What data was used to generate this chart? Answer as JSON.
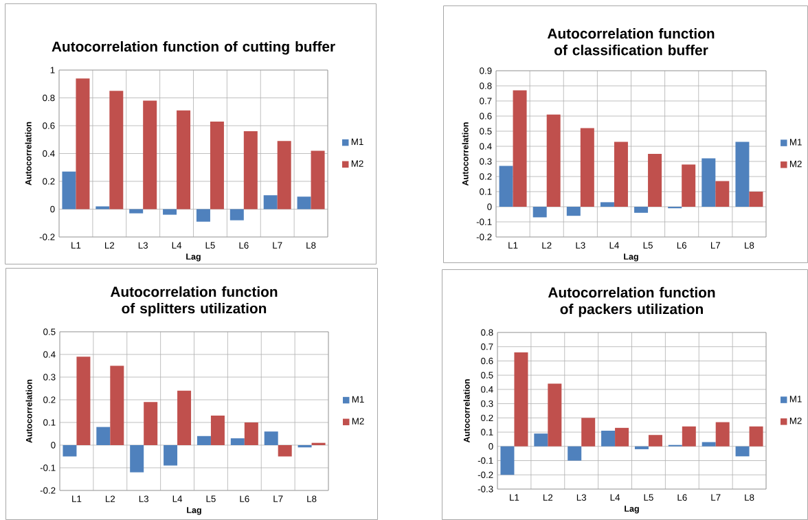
{
  "chart_data": [
    {
      "type": "bar",
      "title": "Autocorrelation function of cutting buffer",
      "xlabel": "Lag",
      "ylabel": "Autocorrelation",
      "categories": [
        "L1",
        "L2",
        "L3",
        "L4",
        "L5",
        "L6",
        "L7",
        "L8"
      ],
      "series": [
        {
          "name": "M1",
          "color": "#4f81bd",
          "values": [
            0.27,
            0.02,
            -0.03,
            -0.04,
            -0.09,
            -0.08,
            0.1,
            0.09
          ]
        },
        {
          "name": "M2",
          "color": "#c0504d",
          "values": [
            0.94,
            0.85,
            0.78,
            0.71,
            0.63,
            0.56,
            0.49,
            0.42
          ]
        }
      ],
      "ylim": [
        -0.2,
        1
      ],
      "yticks": [
        -0.2,
        0,
        0.2,
        0.4,
        0.6,
        0.8,
        1
      ],
      "grid": true,
      "legend": "right"
    },
    {
      "type": "bar",
      "title": "Autocorrelation function of classification buffer",
      "xlabel": "Lag",
      "ylabel": "Autocorrelation",
      "categories": [
        "L1",
        "L2",
        "L3",
        "L4",
        "L5",
        "L6",
        "L7",
        "L8"
      ],
      "series": [
        {
          "name": "M1",
          "color": "#4f81bd",
          "values": [
            0.27,
            -0.07,
            -0.06,
            0.03,
            -0.04,
            -0.01,
            0.32,
            0.43
          ]
        },
        {
          "name": "M2",
          "color": "#c0504d",
          "values": [
            0.77,
            0.61,
            0.52,
            0.43,
            0.35,
            0.28,
            0.17,
            0.1
          ]
        }
      ],
      "ylim": [
        -0.2,
        0.9
      ],
      "yticks": [
        -0.2,
        -0.1,
        0,
        0.1,
        0.2,
        0.3,
        0.4,
        0.5,
        0.6,
        0.7,
        0.8,
        0.9
      ],
      "grid": true,
      "legend": "right"
    },
    {
      "type": "bar",
      "title": "Autocorrelation function of splitters utilization",
      "xlabel": "Lag",
      "ylabel": "Autocorrelation",
      "categories": [
        "L1",
        "L2",
        "L3",
        "L4",
        "L5",
        "L6",
        "L7",
        "L8"
      ],
      "series": [
        {
          "name": "M1",
          "color": "#4f81bd",
          "values": [
            -0.05,
            0.08,
            -0.12,
            -0.09,
            0.04,
            0.03,
            0.06,
            -0.01
          ]
        },
        {
          "name": "M2",
          "color": "#c0504d",
          "values": [
            0.39,
            0.35,
            0.19,
            0.24,
            0.13,
            0.1,
            -0.05,
            0.01
          ]
        }
      ],
      "ylim": [
        -0.2,
        0.5
      ],
      "yticks": [
        -0.2,
        -0.1,
        0,
        0.1,
        0.2,
        0.3,
        0.4,
        0.5
      ],
      "grid": true,
      "legend": "right"
    },
    {
      "type": "bar",
      "title": "Autocorrelation function of packers utilization",
      "xlabel": "Lag",
      "ylabel": "Autocorrelation",
      "categories": [
        "L1",
        "L2",
        "L3",
        "L4",
        "L5",
        "L6",
        "L7",
        "L8"
      ],
      "series": [
        {
          "name": "M1",
          "color": "#4f81bd",
          "values": [
            -0.2,
            0.09,
            -0.1,
            0.11,
            -0.02,
            0.01,
            0.03,
            -0.07
          ]
        },
        {
          "name": "M2",
          "color": "#c0504d",
          "values": [
            0.66,
            0.44,
            0.2,
            0.13,
            0.08,
            0.14,
            0.17,
            0.14
          ]
        }
      ],
      "ylim": [
        -0.3,
        0.8
      ],
      "yticks": [
        -0.3,
        -0.2,
        -0.1,
        0,
        0.1,
        0.2,
        0.3,
        0.4,
        0.5,
        0.6,
        0.7,
        0.8
      ],
      "grid": true,
      "legend": "right"
    }
  ]
}
